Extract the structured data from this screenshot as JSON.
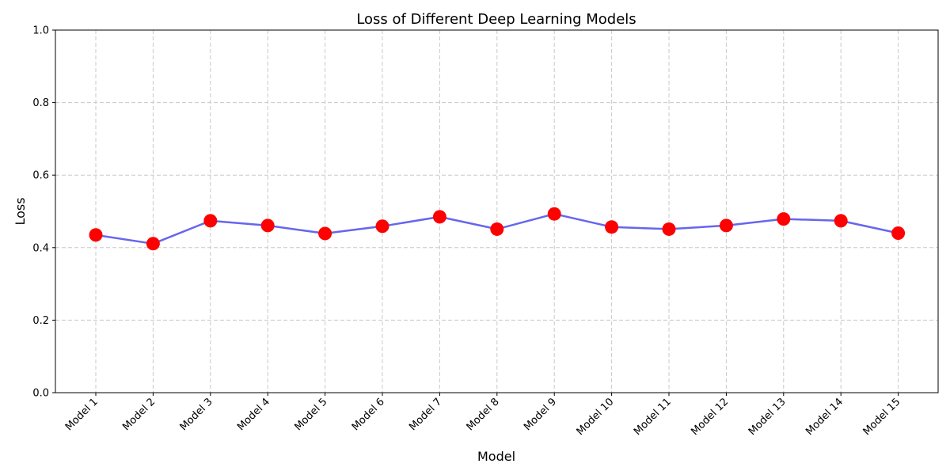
{
  "chart_data": {
    "type": "line",
    "title": "Loss of Different Deep Learning Models",
    "xlabel": "Model",
    "ylabel": "Loss",
    "categories": [
      "Model 1",
      "Model 2",
      "Model 3",
      "Model 4",
      "Model 5",
      "Model 6",
      "Model 7",
      "Model 8",
      "Model 9",
      "Model 10",
      "Model 11",
      "Model 12",
      "Model 13",
      "Model 14",
      "Model 15"
    ],
    "series": [
      {
        "values": [
          0.435,
          0.411,
          0.474,
          0.461,
          0.439,
          0.459,
          0.485,
          0.451,
          0.493,
          0.457,
          0.451,
          0.461,
          0.479,
          0.474,
          0.44
        ]
      }
    ],
    "ylim": [
      0,
      1
    ],
    "yticks": [
      "0.0",
      "0.2",
      "0.4",
      "0.6",
      "0.8",
      "1.0"
    ],
    "grid": true,
    "legend": "none",
    "colors": {
      "line": "#6666ee",
      "marker": "#ff0000",
      "grid": "#c8c8c8"
    }
  }
}
